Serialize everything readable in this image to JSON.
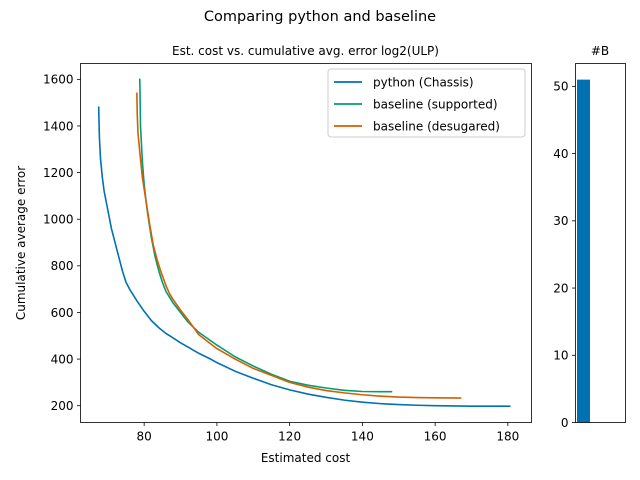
{
  "chart_data": [
    {
      "type": "line",
      "suptitle": "Comparing python and baseline",
      "title": "Est. cost vs. cumulative avg. error log2(ULP)",
      "xlabel": "Estimated cost",
      "ylabel": "Cumulative average error",
      "xlim": [
        62.5,
        186.5
      ],
      "ylim": [
        128,
        1668
      ],
      "xticks": [
        80,
        100,
        120,
        140,
        160,
        180
      ],
      "yticks": [
        200,
        400,
        600,
        800,
        1000,
        1200,
        1400,
        1600
      ],
      "legend_position": "top-right",
      "series": [
        {
          "name": "python (Chassis)",
          "color": "#0072b2",
          "x": [
            67.5,
            67.7,
            68.0,
            68.5,
            69.0,
            70.0,
            71.0,
            72.0,
            73.0,
            74.0,
            75.0,
            76.0,
            78.0,
            80.0,
            82.0,
            84.0,
            86.0,
            88.0,
            90.0,
            92.0,
            95.0,
            98.0,
            100.0,
            105.0,
            110.0,
            115.0,
            120.0,
            125.0,
            130.0,
            135.0,
            140.0,
            145.0,
            150.0,
            155.0,
            160.0,
            165.0,
            170.0,
            175.0,
            180.5
          ],
          "y": [
            1480,
            1350,
            1260,
            1180,
            1120,
            1040,
            960,
            900,
            840,
            780,
            730,
            700,
            650,
            605,
            565,
            535,
            510,
            490,
            470,
            452,
            425,
            402,
            385,
            348,
            318,
            290,
            268,
            250,
            236,
            224,
            215,
            209,
            205,
            202,
            200,
            199,
            198,
            198,
            198
          ]
        },
        {
          "name": "baseline (supported)",
          "color": "#009e73",
          "x": [
            78.8,
            78.9,
            79.0,
            79.5,
            80.0,
            80.5,
            81.0,
            82.0,
            83.0,
            84.0,
            85.0,
            86.0,
            87.0,
            88.0,
            90.0,
            92.0,
            95.0,
            100.0,
            105.0,
            110.0,
            115.0,
            120.0,
            125.0,
            130.0,
            135.0,
            140.0,
            145.0,
            148.0
          ],
          "y": [
            1600,
            1500,
            1400,
            1250,
            1150,
            1080,
            1020,
            920,
            840,
            780,
            730,
            690,
            665,
            640,
            600,
            560,
            515,
            460,
            410,
            370,
            335,
            305,
            288,
            276,
            266,
            261,
            260,
            260
          ]
        },
        {
          "name": "baseline (desugared)",
          "color": "#d55e00",
          "x": [
            78.0,
            78.1,
            78.3,
            78.8,
            79.5,
            80.5,
            81.5,
            82.5,
            83.5,
            84.5,
            86.0,
            87.0,
            88.0,
            90.0,
            92.0,
            95.0,
            100.0,
            105.0,
            110.0,
            115.0,
            120.0,
            125.0,
            130.0,
            135.0,
            140.0,
            145.0,
            150.0,
            155.0,
            160.0,
            167.0
          ],
          "y": [
            1540,
            1450,
            1370,
            1290,
            1180,
            1080,
            980,
            890,
            830,
            780,
            715,
            680,
            655,
            610,
            570,
            505,
            445,
            400,
            360,
            330,
            300,
            280,
            265,
            255,
            247,
            241,
            237,
            235,
            234,
            233
          ]
        }
      ]
    },
    {
      "type": "bar",
      "title": "#B",
      "categories": [
        ""
      ],
      "values": [
        51
      ],
      "color": "#0072b2",
      "ylim": [
        0,
        53.4
      ],
      "yticks": [
        0,
        10,
        20,
        30,
        40,
        50
      ]
    }
  ]
}
